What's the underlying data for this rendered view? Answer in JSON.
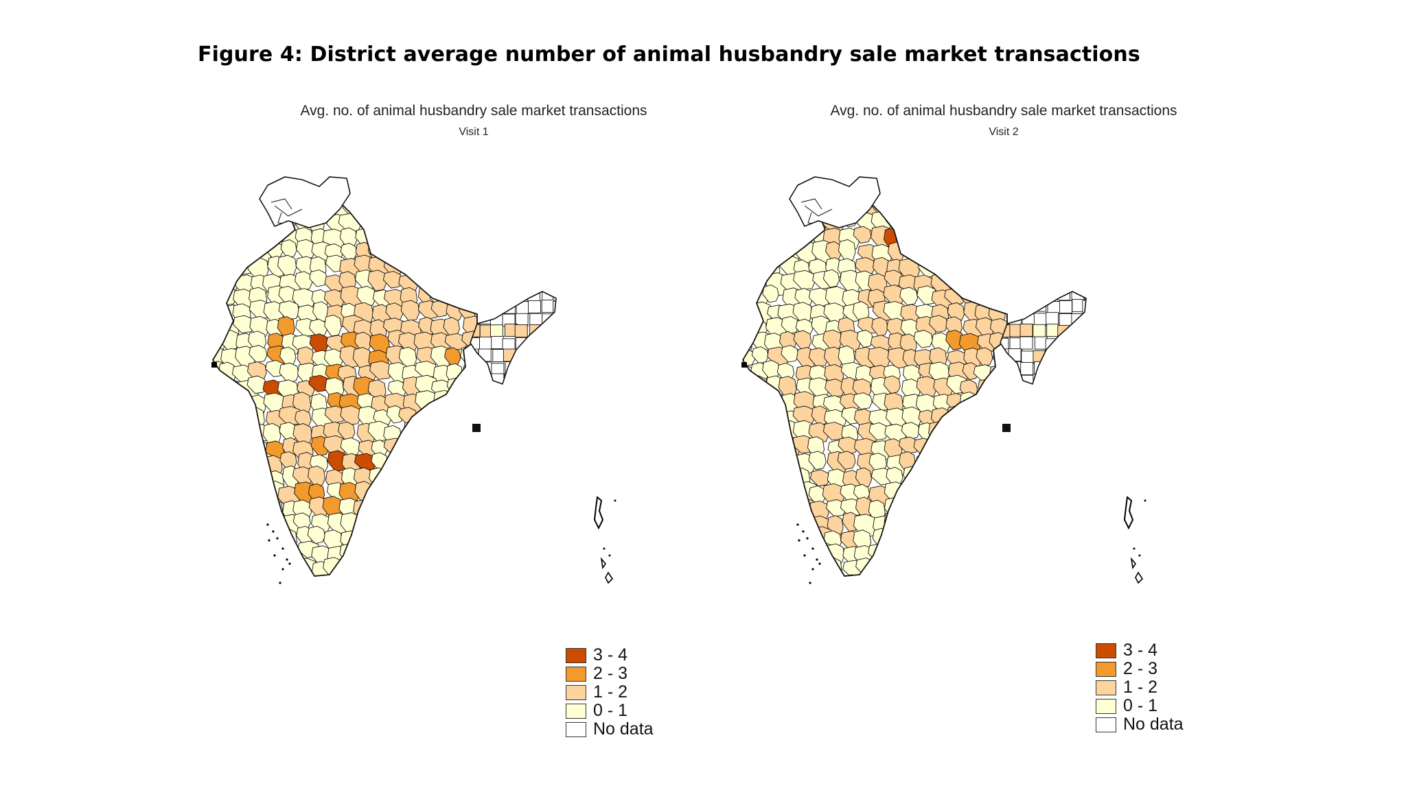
{
  "figure_title": "Figure 4: District average number of animal husbandry sale market transactions",
  "colors": {
    "3-4": "#cc4c02",
    "2-3": "#f39a2d",
    "1-2": "#fdd49e",
    "0-1": "#ffffd4",
    "no_data": "#ffffff",
    "border": "#111111"
  },
  "legend": [
    {
      "label": "3 - 4",
      "key": "3-4"
    },
    {
      "label": "2 - 3",
      "key": "2-3"
    },
    {
      "label": "1 - 2",
      "key": "1-2"
    },
    {
      "label": "0 - 1",
      "key": "0-1"
    },
    {
      "label": "No data",
      "key": "no_data"
    }
  ],
  "maps": [
    {
      "title": "Avg. no. of animal husbandry sale market transactions",
      "subtitle": "Visit 1"
    },
    {
      "title": "Avg. no. of animal husbandry sale market transactions",
      "subtitle": "Visit 2"
    }
  ]
}
